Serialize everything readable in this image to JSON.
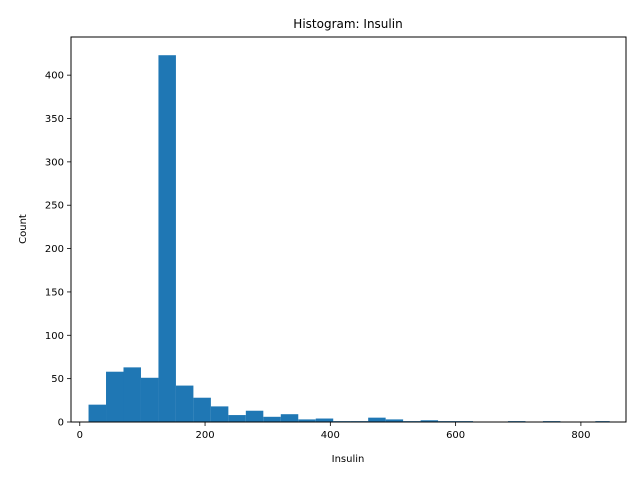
{
  "chart_data": {
    "type": "bar",
    "title": "Histogram: Insulin",
    "xlabel": "Insulin",
    "ylabel": "Count",
    "xlim": [
      -14,
      872
    ],
    "ylim": [
      0,
      444
    ],
    "xticks": [
      0,
      200,
      400,
      600,
      800
    ],
    "yticks": [
      0,
      50,
      100,
      150,
      200,
      250,
      300,
      350,
      400
    ],
    "bar_color": "#1f77b4",
    "bin_edges": [
      14,
      41.9,
      69.8,
      97.7,
      125.6,
      153.5,
      181.4,
      209.3,
      237.2,
      265.1,
      293,
      320.9,
      348.8,
      376.7,
      404.6,
      432.5,
      460.4,
      488.3,
      516.2,
      544.1,
      572,
      599.9,
      627.8,
      655.7,
      683.6,
      711.5,
      739.4,
      767.3,
      795.2,
      823.1,
      846
    ],
    "values": [
      20,
      58,
      63,
      51,
      423,
      42,
      28,
      18,
      8,
      13,
      6,
      9,
      3,
      4,
      1,
      1,
      5,
      3,
      1,
      2,
      1,
      1,
      0,
      0,
      1,
      0,
      1,
      0,
      0,
      1
    ],
    "grid": false
  }
}
